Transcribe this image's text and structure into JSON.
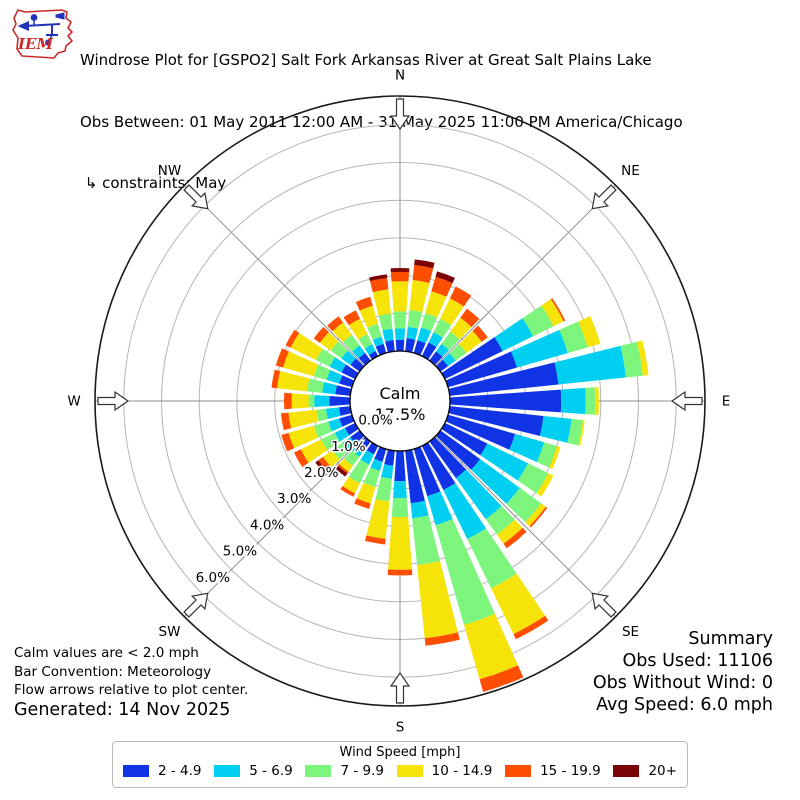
{
  "header": {
    "logo_text": "IEM",
    "title": "Windrose Plot for [GSPO2] Salt Fork Arkansas River at Great Salt Plains Lake",
    "subtitle": "Obs Between: 01 May 2011 12:00 AM - 31 May 2025 11:00 PM America/Chicago",
    "constraint": " ↳ constraints: May"
  },
  "summary": {
    "title": "Summary",
    "obs_used": "Obs Used: 11106",
    "obs_without_wind": "Obs Without Wind: 0",
    "avg_speed": "Avg Speed: 6.0 mph"
  },
  "notes": {
    "line1": "Calm values are < 2.0 mph",
    "line2": "Bar Convention: Meteorology",
    "line3": "Flow arrows relative to plot center.",
    "generated": "Generated: 14 Nov 2025"
  },
  "legend": {
    "title": "Wind Speed [mph]",
    "bins": [
      {
        "label": "2 - 4.9",
        "color": "#1033e5"
      },
      {
        "label": "5 - 6.9",
        "color": "#00cff2"
      },
      {
        "label": "7 - 9.9",
        "color": "#7df57d"
      },
      {
        "label": "10 - 14.9",
        "color": "#f5e309"
      },
      {
        "label": "15 - 19.9",
        "color": "#fe4e02"
      },
      {
        "label": "20+",
        "color": "#7b0407"
      }
    ]
  },
  "chart_data": {
    "type": "windrose-polar-bar",
    "title": "Windrose Plot for [GSPO2] Salt Fork Arkansas River at Great Salt Plains Lake",
    "calm": {
      "label": "Calm",
      "percent": "17.5%",
      "note": "Calm values are < 2.0 mph"
    },
    "compass_labels": [
      "N",
      "NE",
      "E",
      "SE",
      "S",
      "SW",
      "W",
      "NW"
    ],
    "ring_labels": [
      "0.0%",
      "1.0%",
      "2.0%",
      "3.0%",
      "4.0%",
      "5.0%",
      "6.0%"
    ],
    "ring_percent_step": 1.0,
    "rings_shown": 6,
    "speed_bins_mph": [
      "2 - 4.9",
      "5 - 6.9",
      "7 - 9.9",
      "10 - 14.9",
      "15 - 19.9",
      "20+"
    ],
    "directions_deg": [
      0,
      10,
      20,
      30,
      40,
      50,
      60,
      70,
      80,
      90,
      100,
      110,
      120,
      130,
      140,
      150,
      160,
      170,
      180,
      190,
      200,
      210,
      220,
      230,
      240,
      250,
      260,
      270,
      280,
      290,
      300,
      310,
      320,
      330,
      340,
      350
    ],
    "cumulative_percent_by_bin": [
      [
        0.3,
        0.6,
        1.05,
        1.85,
        2.1,
        2.2
      ],
      [
        0.35,
        0.65,
        1.1,
        1.9,
        2.3,
        2.45
      ],
      [
        0.35,
        0.7,
        1.1,
        1.7,
        2.1,
        2.25
      ],
      [
        0.4,
        0.7,
        1.1,
        1.7,
        2.05,
        2.05
      ],
      [
        0.3,
        0.55,
        0.95,
        1.4,
        1.7,
        1.7
      ],
      [
        0.25,
        0.5,
        0.85,
        1.35,
        1.55,
        1.55
      ],
      [
        1.7,
        2.6,
        3.2,
        3.5,
        3.55,
        3.55
      ],
      [
        1.9,
        3.3,
        3.85,
        4.2,
        4.2,
        4.2
      ],
      [
        2.9,
        4.7,
        5.15,
        5.3,
        5.3,
        5.3
      ],
      [
        2.95,
        3.6,
        3.85,
        3.95,
        3.95,
        3.95
      ],
      [
        2.5,
        3.25,
        3.55,
        3.6,
        3.6,
        3.6
      ],
      [
        1.85,
        2.65,
        3.0,
        3.1,
        3.1,
        3.1
      ],
      [
        1.25,
        2.45,
        3.05,
        3.2,
        3.2,
        3.2
      ],
      [
        1.3,
        2.6,
        3.3,
        3.45,
        3.5,
        3.5
      ],
      [
        1.2,
        2.55,
        3.05,
        3.35,
        3.5,
        3.5
      ],
      [
        1.3,
        2.75,
        4.2,
        5.55,
        5.7,
        5.7
      ],
      [
        1.3,
        2.1,
        4.85,
        6.35,
        6.7,
        6.7
      ],
      [
        1.4,
        1.8,
        3.05,
        5.0,
        5.2,
        5.2
      ],
      [
        0.8,
        1.25,
        1.75,
        3.15,
        3.3,
        3.3
      ],
      [
        0.4,
        0.75,
        1.35,
        2.35,
        2.5,
        2.5
      ],
      [
        0.35,
        0.6,
        1.05,
        1.5,
        1.65,
        1.65
      ],
      [
        0.25,
        0.55,
        1.1,
        1.4,
        1.5,
        1.5
      ],
      [
        0.25,
        0.5,
        0.8,
        1.0,
        1.05,
        1.15
      ],
      [
        0.3,
        0.55,
        0.9,
        1.2,
        1.35,
        1.45
      ],
      [
        0.3,
        0.6,
        1.0,
        1.6,
        1.8,
        1.8
      ],
      [
        0.35,
        0.65,
        1.05,
        1.75,
        1.95,
        1.95
      ],
      [
        0.3,
        0.65,
        0.9,
        1.65,
        1.85,
        1.85
      ],
      [
        0.55,
        0.95,
        1.1,
        1.55,
        1.75,
        1.75
      ],
      [
        0.4,
        0.75,
        1.15,
        1.95,
        2.1,
        2.1
      ],
      [
        0.35,
        0.7,
        1.05,
        1.9,
        2.1,
        2.1
      ],
      [
        0.4,
        0.75,
        1.15,
        1.9,
        2.05,
        2.05
      ],
      [
        0.3,
        0.6,
        0.95,
        1.3,
        1.5,
        1.5
      ],
      [
        0.25,
        0.5,
        0.85,
        1.25,
        1.45,
        1.45
      ],
      [
        0.15,
        0.35,
        0.65,
        1.1,
        1.35,
        1.35
      ],
      [
        0.25,
        0.45,
        0.8,
        1.3,
        1.55,
        1.55
      ],
      [
        0.3,
        0.6,
        1.0,
        1.65,
        1.95,
        2.05
      ]
    ],
    "bin_colors": [
      "#1033e5",
      "#00cff2",
      "#7df57d",
      "#f5e309",
      "#fe4e02",
      "#7b0407"
    ],
    "legend_title": "Wind Speed [mph]",
    "legend_position": "bottom-center"
  },
  "style": {
    "ring_color": "#b5b5b5",
    "spoke_color": "#8f8f8f",
    "outer_circle_color": "#1a1a1a",
    "calm_circle_fill": "#ffffff",
    "calm_circle_stroke": "#000000",
    "logo_red": "#cc2a2a",
    "logo_blue": "#2233bb"
  }
}
